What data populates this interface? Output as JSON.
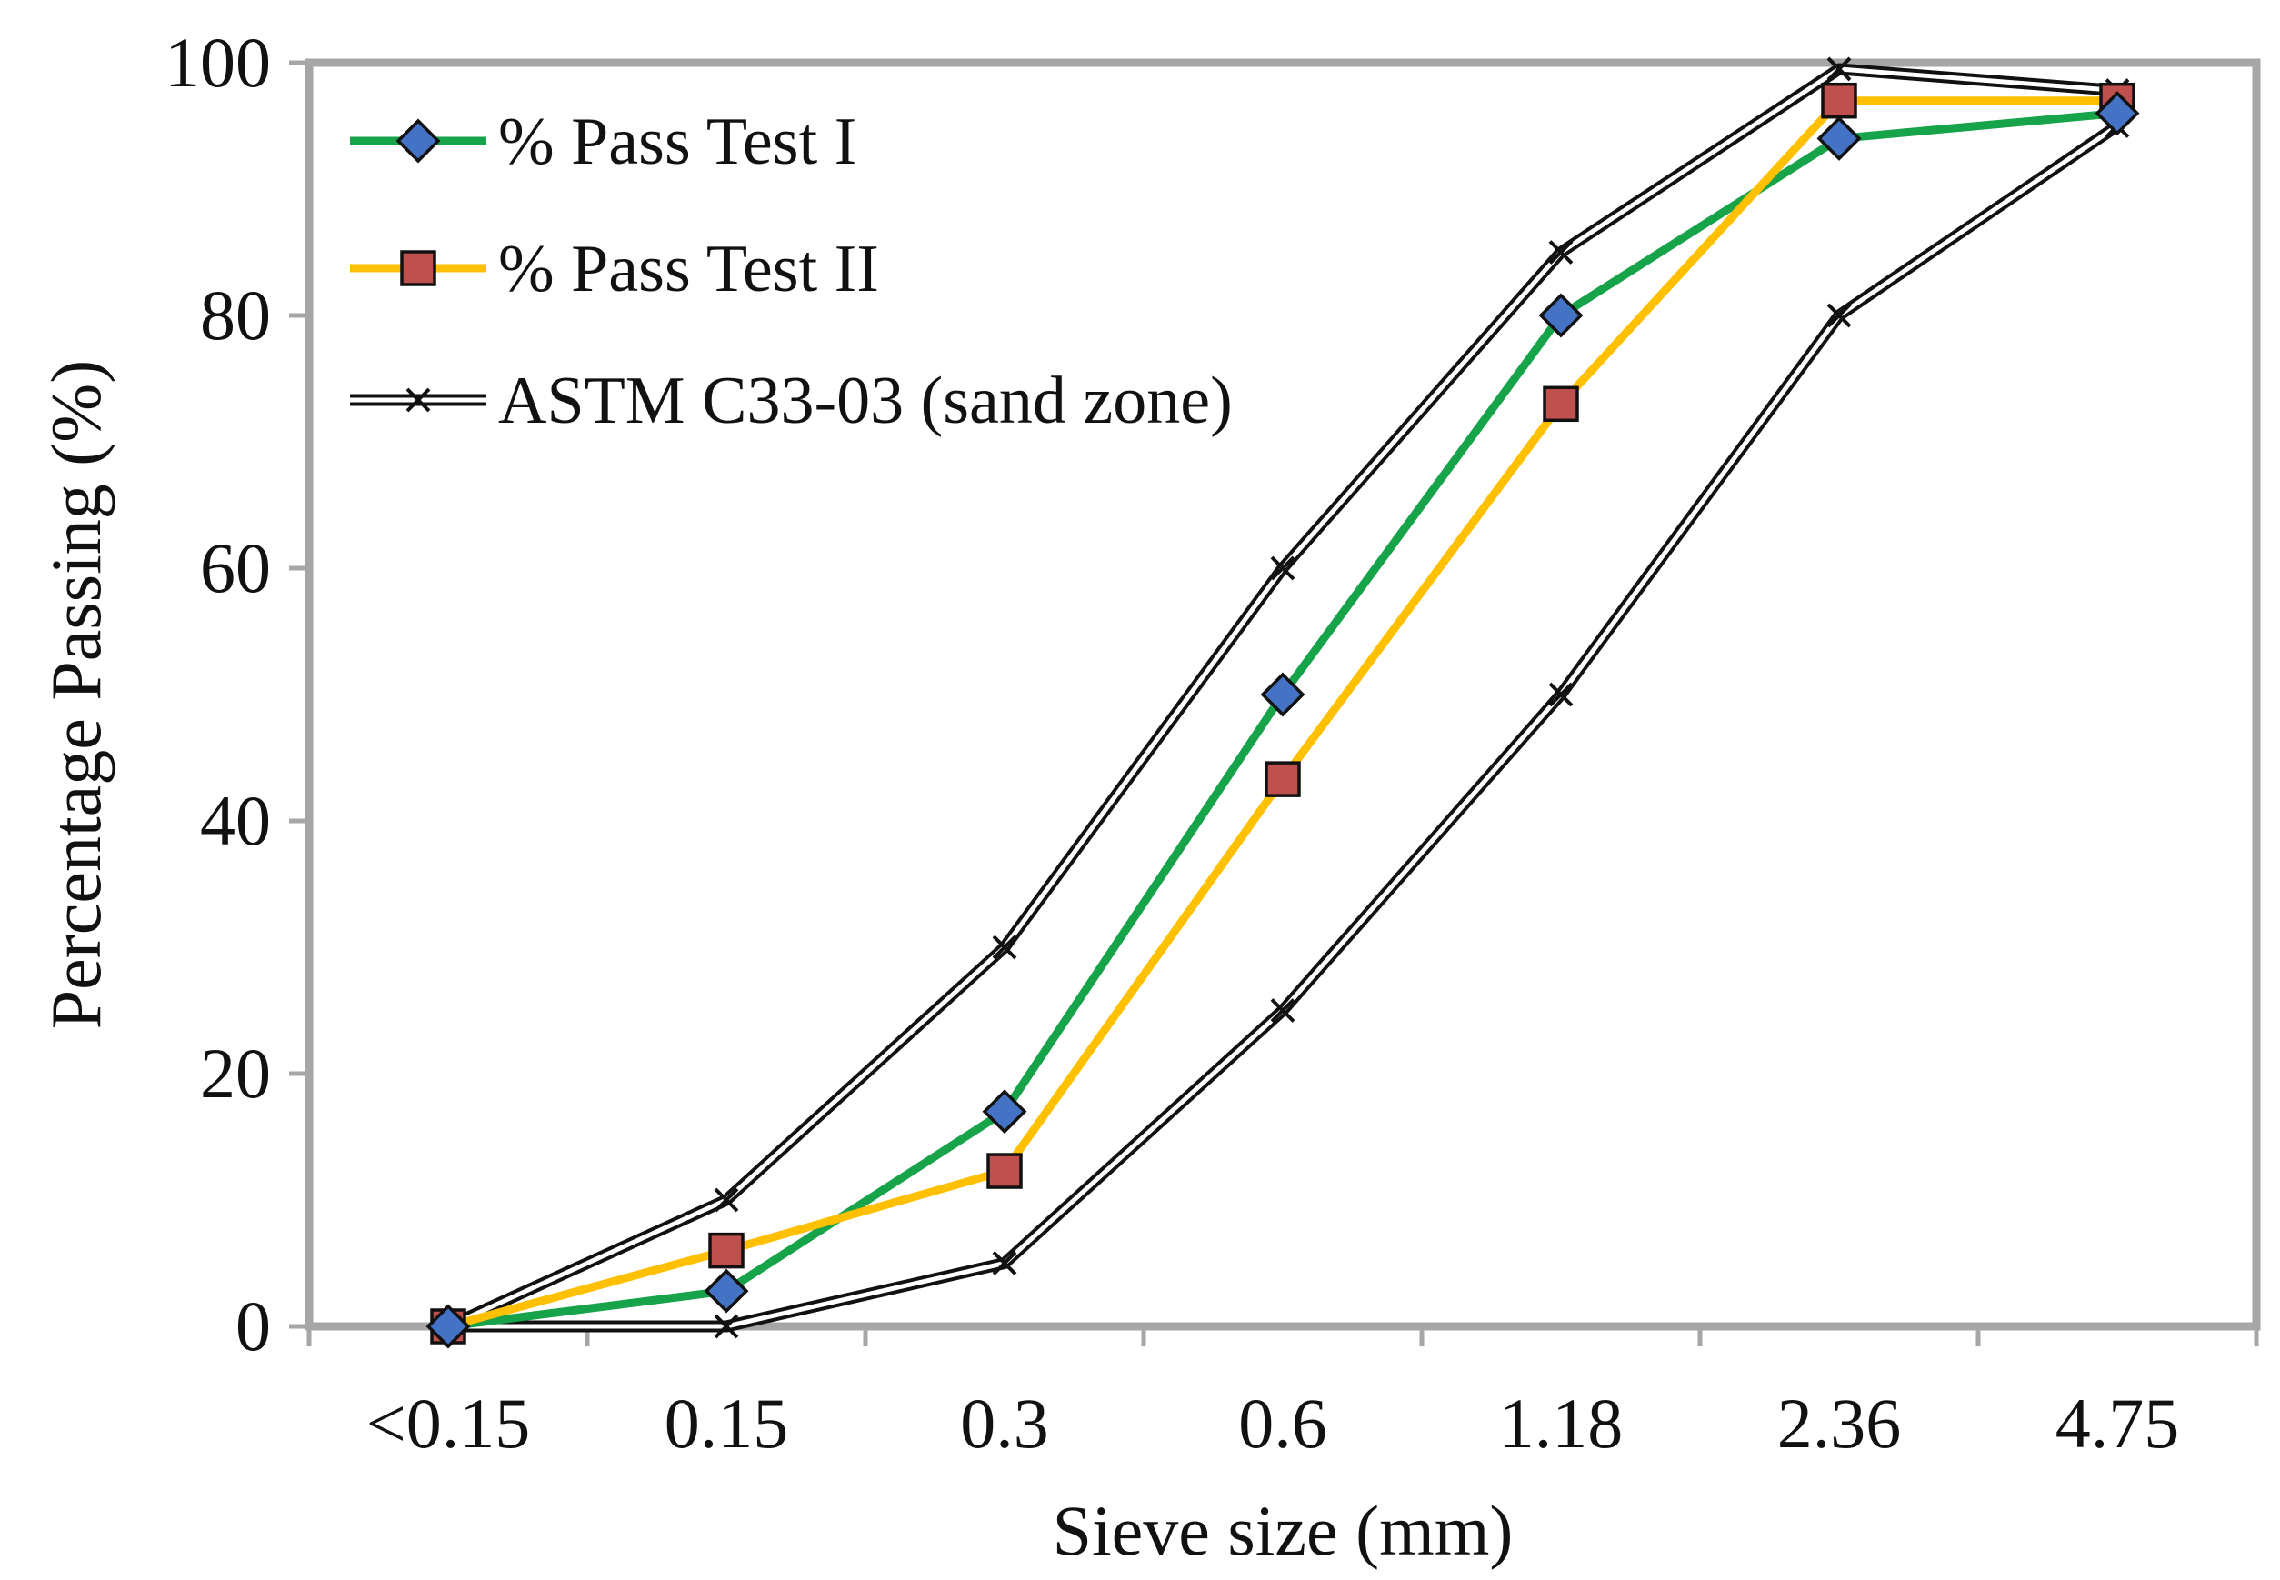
{
  "chart_data": {
    "type": "line",
    "xlabel": "Sieve size (mm)",
    "ylabel": "Percentage Passing (%)",
    "categories": [
      "<0.15",
      "0.15",
      "0.3",
      "0.6",
      "1.18",
      "2.36",
      "4.75"
    ],
    "ylim": [
      0,
      100
    ],
    "yticks": [
      "0",
      "20",
      "40",
      "60",
      "80",
      "100"
    ],
    "grid": false,
    "legend_position": "top-left",
    "series": [
      {
        "name": "% Pass Test I",
        "color": "#16a34a",
        "marker": "diamond",
        "marker_color": "#4472c4",
        "values": [
          0,
          2.8,
          17,
          50,
          80,
          94,
          96
        ]
      },
      {
        "name": "% Pass Test II",
        "color": "#ffc000",
        "marker": "square",
        "marker_color": "#c0504d",
        "values": [
          0,
          6,
          12.3,
          43.3,
          73,
          97,
          97
        ]
      },
      {
        "name": "ASTM C33-03 (sand zone)",
        "color": "#111111",
        "marker": "x",
        "style": "double-line",
        "upper": [
          0,
          10,
          30,
          60,
          85,
          99.5,
          97.8
        ],
        "lower": [
          0,
          0,
          5,
          25,
          50,
          80,
          95
        ]
      }
    ]
  }
}
